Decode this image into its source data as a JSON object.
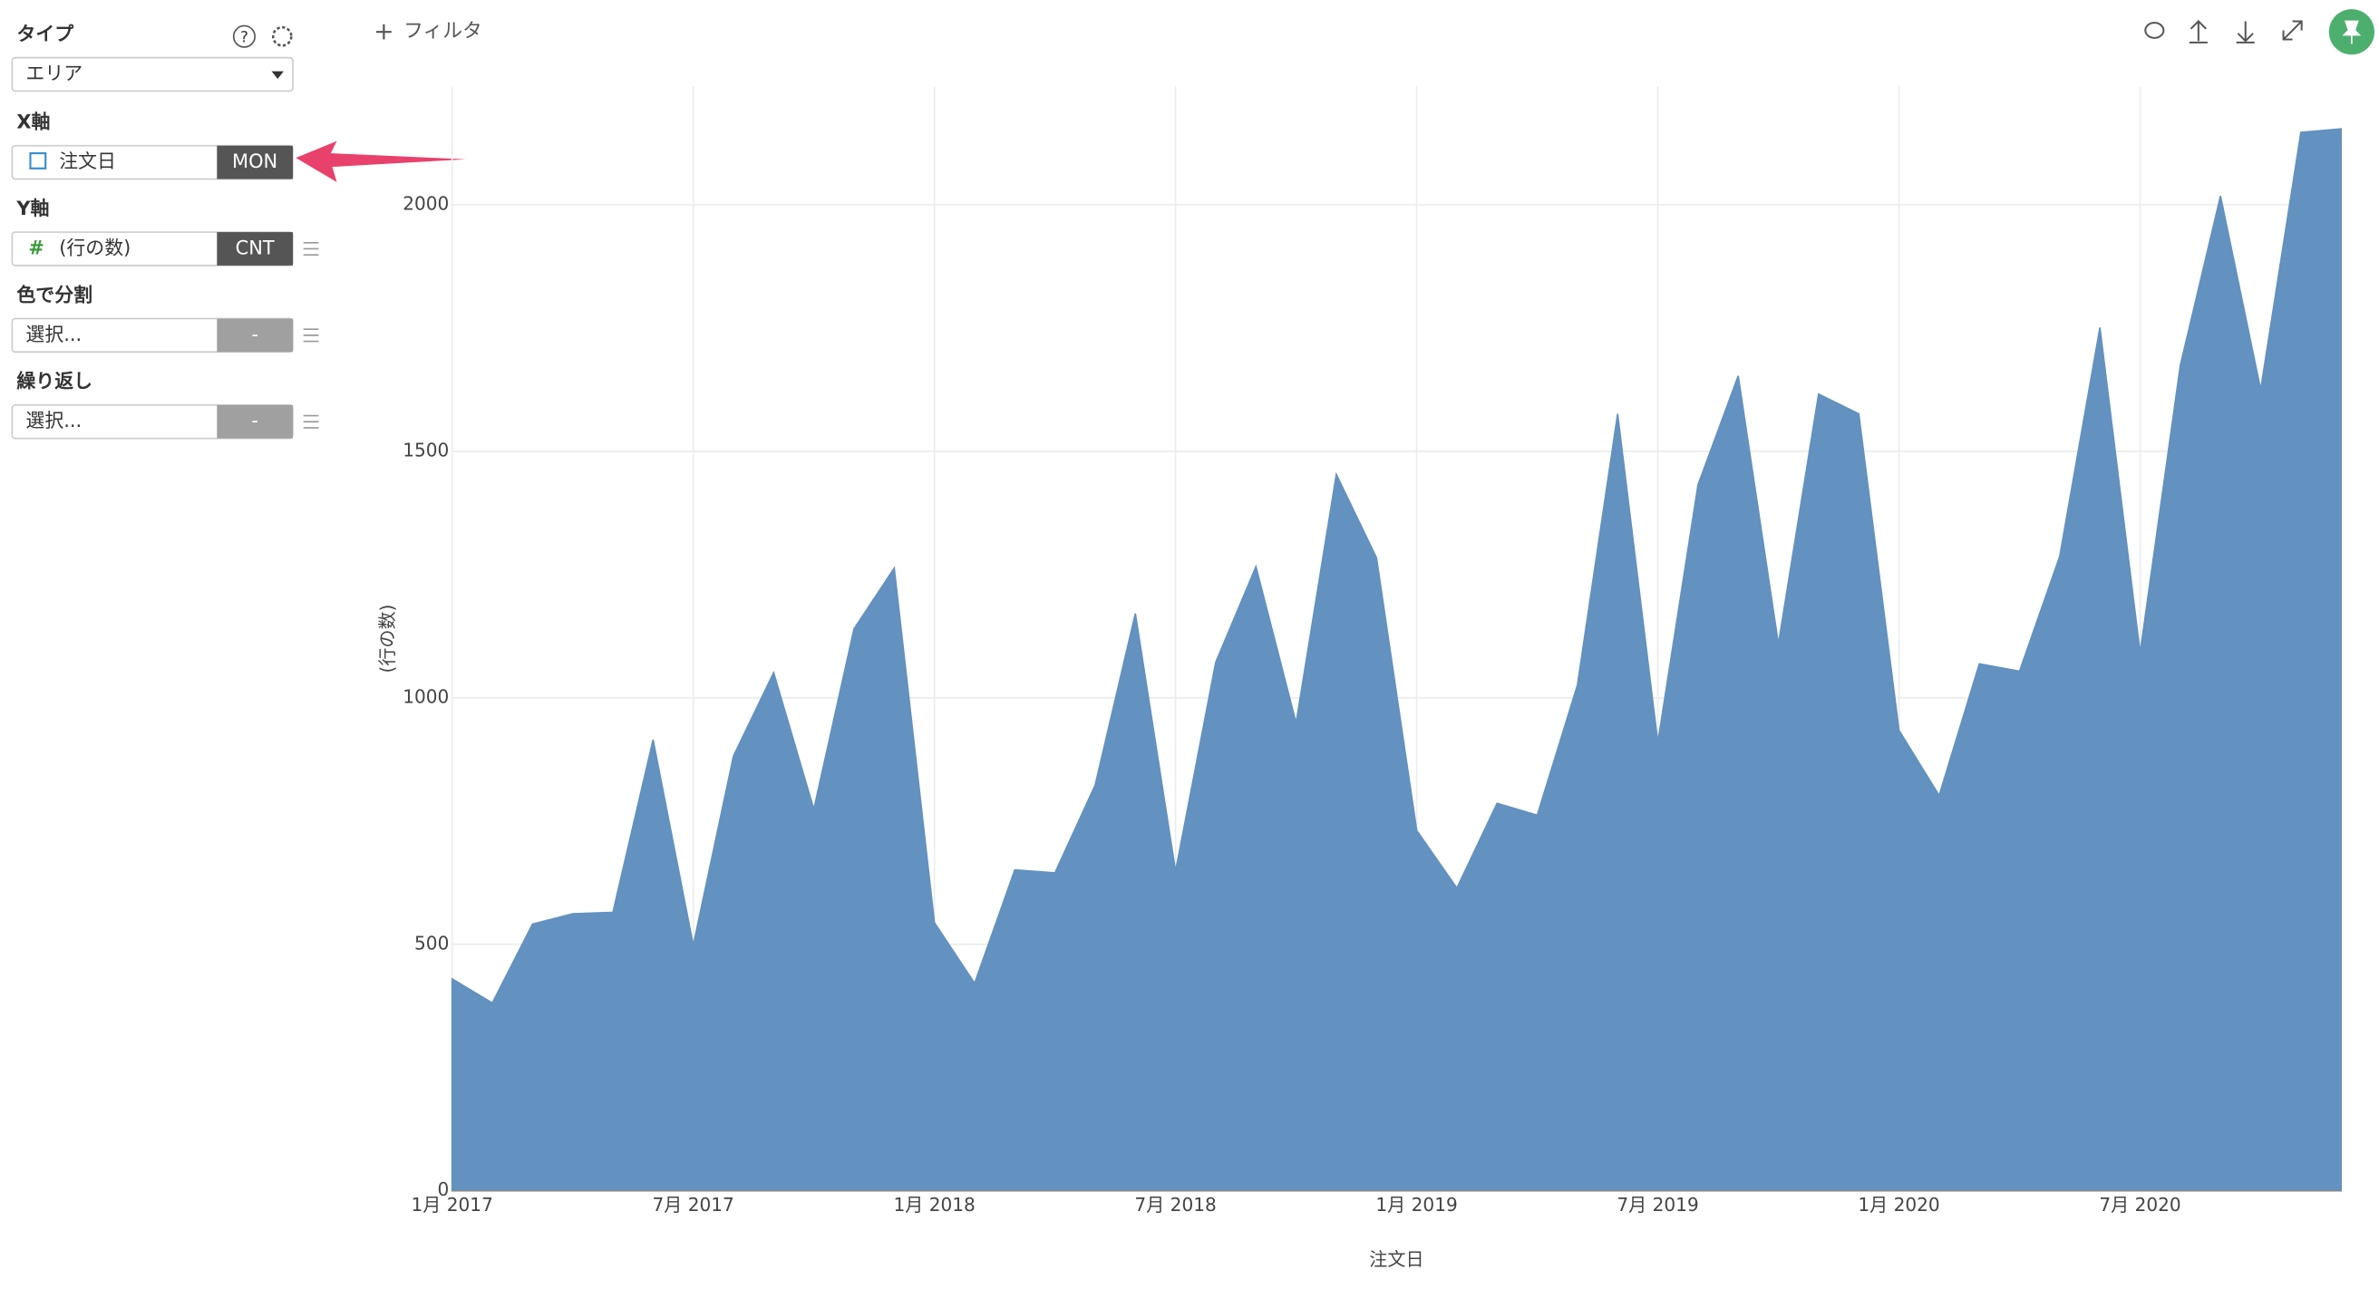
{
  "sidebar": {
    "type_label": "タイプ",
    "type_value": "エリア",
    "x_label": "X軸",
    "x_field": "注文日",
    "x_agg": "MON",
    "y_label": "Y軸",
    "y_field": "(行の数)",
    "y_agg": "CNT",
    "color_label": "色で分割",
    "color_field": "選択...",
    "color_agg": "-",
    "repeat_label": "繰り返し",
    "repeat_field": "選択...",
    "repeat_agg": "-"
  },
  "toolbar": {
    "filter": "フィルタ"
  },
  "chart_data": {
    "type": "area",
    "x_label": "注文日",
    "y_label": "(行の数)",
    "color": "#6391c0",
    "grid": true,
    "x": [
      "2017-01",
      "2017-02",
      "2017-03",
      "2017-04",
      "2017-05",
      "2017-06",
      "2017-07",
      "2017-08",
      "2017-09",
      "2017-10",
      "2017-11",
      "2017-12",
      "2018-01",
      "2018-02",
      "2018-03",
      "2018-04",
      "2018-05",
      "2018-06",
      "2018-07",
      "2018-08",
      "2018-09",
      "2018-10",
      "2018-11",
      "2018-12",
      "2019-01",
      "2019-02",
      "2019-03",
      "2019-04",
      "2019-05",
      "2019-06",
      "2019-07",
      "2019-08",
      "2019-09",
      "2019-10",
      "2019-11",
      "2019-12",
      "2020-01",
      "2020-02",
      "2020-03",
      "2020-04",
      "2020-05",
      "2020-06",
      "2020-07",
      "2020-08",
      "2020-09",
      "2020-10",
      "2020-11",
      "2020-12"
    ],
    "values": [
      430,
      381,
      541,
      562,
      565,
      915,
      498,
      882,
      1051,
      774,
      1140,
      1263,
      544,
      421,
      651,
      645,
      823,
      1171,
      648,
      1072,
      1266,
      949,
      1453,
      1284,
      731,
      614,
      786,
      762,
      1026,
      1576,
      909,
      1432,
      1653,
      1109,
      1616,
      1576,
      934,
      802,
      1069,
      1054,
      1287,
      1751,
      1091,
      1674,
      2018,
      1625,
      2147,
      2154
    ],
    "xlim": [
      "2017-01",
      "2020-12"
    ],
    "xticks": [
      {
        "value": "2017-01",
        "label": "1月 2017"
      },
      {
        "value": "2017-07",
        "label": "7月 2017"
      },
      {
        "value": "2018-01",
        "label": "1月 2018"
      },
      {
        "value": "2018-07",
        "label": "7月 2018"
      },
      {
        "value": "2019-01",
        "label": "1月 2019"
      },
      {
        "value": "2019-07",
        "label": "7月 2019"
      },
      {
        "value": "2020-01",
        "label": "1月 2020"
      },
      {
        "value": "2020-07",
        "label": "7月 2020"
      }
    ],
    "ylim": [
      0,
      2240
    ],
    "yticks": [
      0,
      500,
      1000,
      1500,
      2000
    ]
  }
}
